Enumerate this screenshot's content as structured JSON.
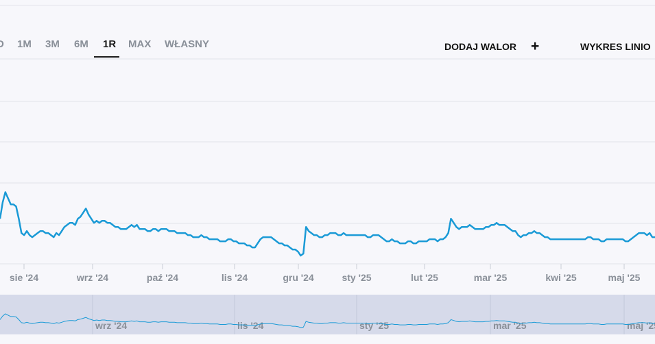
{
  "range_tabs": [
    {
      "label": "D",
      "active": false
    },
    {
      "label": "1M",
      "active": false
    },
    {
      "label": "3M",
      "active": false
    },
    {
      "label": "6M",
      "active": false
    },
    {
      "label": "1R",
      "active": true
    },
    {
      "label": "MAX",
      "active": false
    },
    {
      "label": "WŁASNY",
      "active": false
    }
  ],
  "actions": {
    "add_label": "DODAJ WALOR",
    "add_icon": "+",
    "chart_type_label": "WYKRES LINIO"
  },
  "colors": {
    "line": "#1a9ad6",
    "grid": "#e2e3ea",
    "navigator_fill": "#d6daea",
    "tick_label": "#8a9099"
  },
  "chart_data": {
    "type": "line",
    "title": "",
    "xlabel": "",
    "ylabel": "",
    "x_tick_labels": [
      "sie '24",
      "wrz '24",
      "paź '24",
      "lis '24",
      "gru '24",
      "sty '25",
      "lut '25",
      "mar '25",
      "kwi '25",
      "maj '25"
    ],
    "navigator_tick_labels": [
      "wrz '24",
      "lis '24",
      "sty '25",
      "mar '25",
      "maj '25"
    ],
    "ylim": [
      0,
      100
    ],
    "grid": true,
    "series": [
      {
        "values": [
          22,
          30,
          35,
          32,
          29,
          29,
          28,
          22,
          15,
          14,
          16,
          14,
          13,
          14,
          15,
          16,
          16,
          15,
          15,
          14,
          13,
          15,
          14,
          16,
          18,
          19,
          20,
          20,
          19,
          22,
          23,
          25,
          27,
          24,
          22,
          20,
          21,
          20,
          21,
          21,
          20,
          20,
          19,
          18,
          18,
          17,
          17,
          17,
          18,
          19,
          18,
          19,
          17,
          17,
          17,
          16,
          16,
          17,
          17,
          16,
          17,
          17,
          17,
          16,
          16,
          16,
          15,
          15,
          15,
          15,
          14,
          14,
          13,
          13,
          13,
          14,
          13,
          13,
          12,
          12,
          12,
          12,
          11,
          11,
          11,
          12,
          12,
          11,
          11,
          10,
          10,
          10,
          9,
          9,
          8,
          8,
          10,
          12,
          13,
          13,
          13,
          13,
          12,
          11,
          10,
          10,
          9,
          9,
          8,
          7,
          7,
          6,
          4,
          5,
          18,
          16,
          15,
          14,
          14,
          13,
          13,
          14,
          14,
          15,
          15,
          15,
          14,
          14,
          15,
          14,
          14,
          14,
          14,
          14,
          14,
          14,
          14,
          13,
          13,
          14,
          14,
          14,
          13,
          12,
          11,
          11,
          12,
          11,
          11,
          10,
          10,
          10,
          11,
          11,
          10,
          10,
          11,
          11,
          11,
          11,
          12,
          12,
          12,
          11,
          12,
          12,
          13,
          15,
          22,
          20,
          18,
          17,
          18,
          18,
          18,
          19,
          18,
          17,
          17,
          17,
          17,
          18,
          18,
          19,
          19,
          20,
          19,
          19,
          19,
          18,
          17,
          16,
          16,
          14,
          13,
          14,
          14,
          15,
          15,
          16,
          15,
          15,
          14,
          13,
          13,
          12,
          12,
          12,
          12,
          12,
          12,
          12,
          12,
          12,
          12,
          12,
          12,
          12,
          12,
          13,
          13,
          12,
          12,
          12,
          11,
          11,
          12,
          12,
          12,
          12,
          12,
          12,
          12,
          11,
          11,
          12,
          13,
          14,
          15,
          15,
          15,
          14,
          15,
          13,
          13
        ]
      }
    ]
  }
}
